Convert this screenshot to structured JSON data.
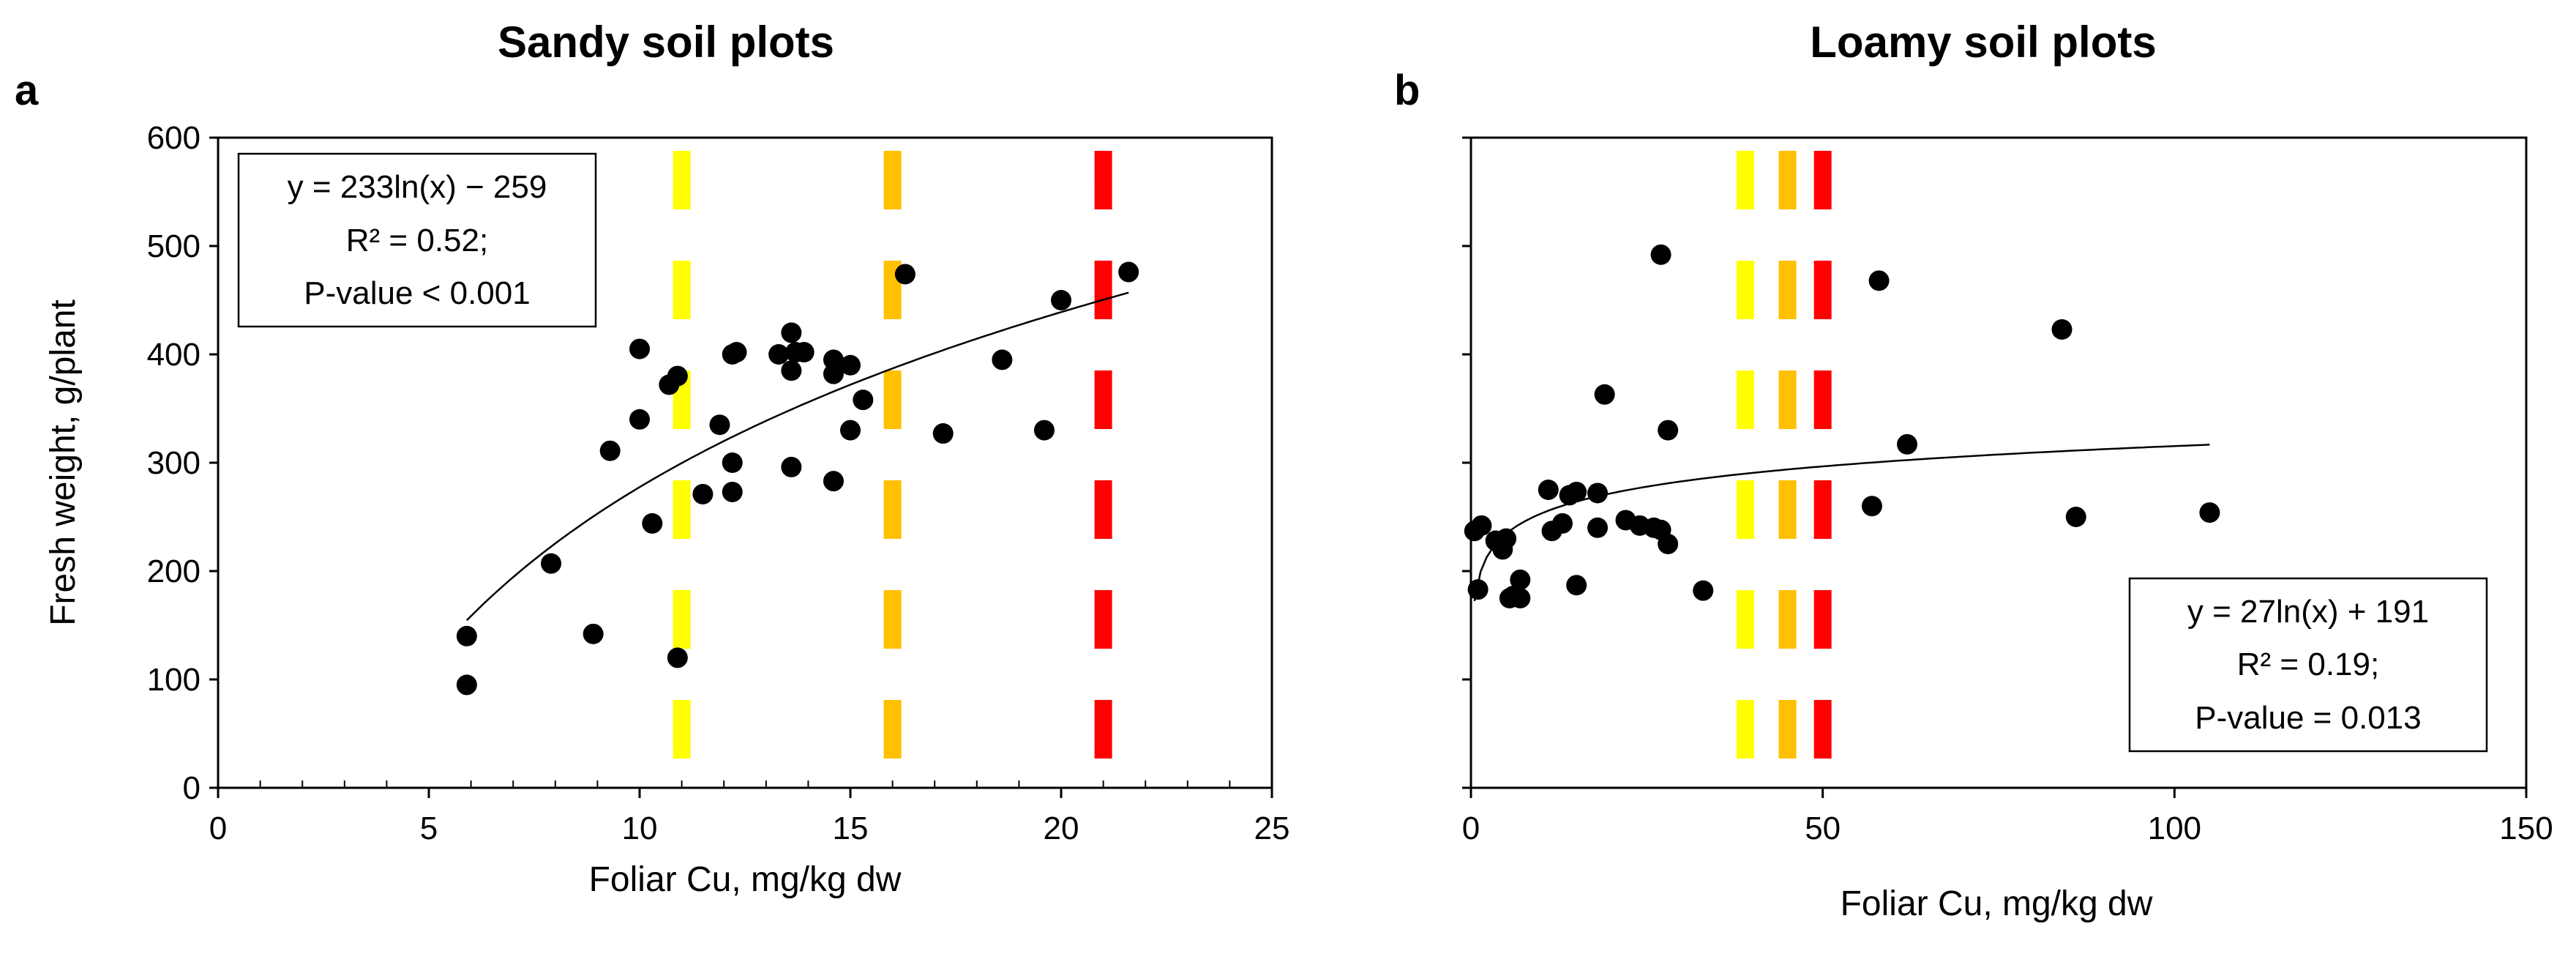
{
  "panels": [
    {
      "label": "a",
      "title": "Sandy soil plots",
      "xlabel": "Foliar Cu, mg/kg dw",
      "ylabel": "Fresh weight, g/plant",
      "equation": [
        "y = 233ln(x)  − 259",
        "R² = 0.52;",
        "P-value  < 0.001"
      ]
    },
    {
      "label": "b",
      "title": "Loamy soil plots",
      "xlabel": "Foliar Cu, mg/kg dw",
      "ylabel": "",
      "equation": [
        "y = 27ln(x)  + 191",
        "R² = 0.19;",
        "P-value  = 0.013"
      ]
    }
  ],
  "chart_data": [
    {
      "type": "scatter",
      "title": "Sandy soil plots",
      "xlabel": "Foliar Cu, mg/kg dw",
      "ylabel": "Fresh weight, g/plant",
      "xlim": [
        0,
        25
      ],
      "ylim": [
        0,
        600
      ],
      "xticks": [
        "0",
        "5",
        "10",
        "15",
        "20",
        "25"
      ],
      "yticks": [
        "0",
        "100",
        "200",
        "300",
        "400",
        "500",
        "600"
      ],
      "x": [
        5.9,
        5.9,
        7.9,
        8.9,
        9.3,
        10.0,
        10.0,
        10.3,
        10.7,
        10.9,
        10.9,
        11.5,
        11.9,
        12.2,
        12.2,
        12.2,
        12.3,
        13.3,
        13.6,
        13.6,
        13.6,
        13.7,
        13.9,
        14.6,
        14.6,
        14.6,
        15.0,
        15.0,
        15.3,
        16.3,
        17.2,
        18.6,
        19.6,
        20.0,
        21.6
      ],
      "y": [
        140,
        95,
        207,
        142,
        311,
        340,
        405,
        244,
        372,
        380,
        120,
        271,
        335,
        300,
        273,
        400,
        402,
        400,
        385,
        420,
        296,
        402,
        402,
        283,
        382,
        395,
        330,
        390,
        358,
        474,
        327,
        395,
        330,
        450,
        476
      ],
      "trendline": {
        "model": "233*ln(x) - 259",
        "a": 233,
        "b": -259,
        "xrange": [
          5.9,
          21.6
        ]
      },
      "threshold_lines": [
        {
          "x": 11,
          "color": "#ffff00"
        },
        {
          "x": 16,
          "color": "#ffc000"
        },
        {
          "x": 21,
          "color": "#ff0000"
        }
      ]
    },
    {
      "type": "scatter",
      "title": "Loamy soil plots",
      "xlabel": "Foliar Cu, mg/kg dw",
      "ylabel": "",
      "xlim": [
        0,
        150
      ],
      "ylim": [
        0,
        600
      ],
      "xticks": [
        "0",
        "50",
        "100",
        "150"
      ],
      "yticks": [],
      "x": [
        0.5,
        1,
        1.5,
        3.5,
        4.5,
        5,
        5.5,
        6,
        7,
        7,
        11,
        11.5,
        13,
        14,
        15,
        15,
        18,
        18,
        19,
        22,
        24,
        26,
        27,
        27,
        28,
        28,
        33,
        57,
        58,
        62,
        84,
        86,
        105
      ],
      "y": [
        237,
        183,
        242,
        228,
        220,
        230,
        175,
        177,
        192,
        175,
        275,
        237,
        244,
        270,
        273,
        187,
        240,
        272,
        363,
        247,
        242,
        240,
        492,
        238,
        225,
        330,
        182,
        260,
        468,
        317,
        423,
        250,
        254
      ],
      "trendline": {
        "model": "27*ln(x) + 191",
        "a": 27,
        "b": 191,
        "xrange": [
          0.5,
          105
        ]
      },
      "threshold_lines": [
        {
          "x": 39,
          "color": "#ffff00"
        },
        {
          "x": 45,
          "color": "#ffc000"
        },
        {
          "x": 50,
          "color": "#ff0000"
        }
      ]
    }
  ]
}
